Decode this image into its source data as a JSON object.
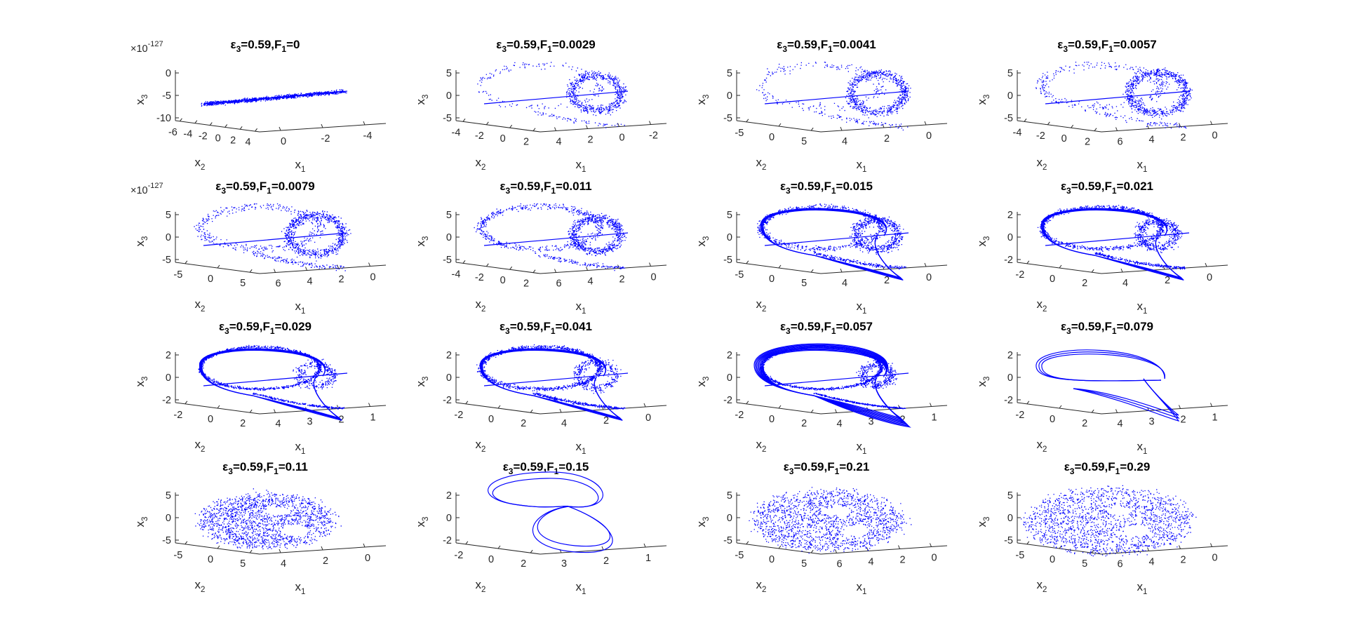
{
  "figure": {
    "color": "#0000ff",
    "panel_count": 16,
    "grid": "4x4",
    "view": "3d-axes, no grid"
  },
  "chart_data": [
    {
      "type": "scatter",
      "title": {
        "eps": "ε",
        "eps_sub": "3",
        "val": "=0.59,F",
        "f_sub": "1",
        "f_val": "=0"
      },
      "exponent": {
        "base": "×10",
        "power": "-127"
      },
      "xlabel": {
        "main": "x",
        "sub": "1"
      },
      "ylabel": {
        "main": "x",
        "sub": "2"
      },
      "zlabel": {
        "main": "x",
        "sub": "3"
      },
      "x1_ticks": [
        "0",
        "-2",
        "-4"
      ],
      "x2_ticks": [
        "-6",
        "-4",
        "-2",
        "0",
        "2",
        "4"
      ],
      "x3_ticks": [
        "0",
        "-5",
        "-10"
      ],
      "pattern": "line",
      "density": 0.5,
      "loop": 0.0,
      "spread": 0.1
    },
    {
      "type": "scatter",
      "title": {
        "eps": "ε",
        "eps_sub": "3",
        "val": "=0.59,F",
        "f_sub": "1",
        "f_val": "=0.0029"
      },
      "xlabel": {
        "main": "x",
        "sub": "1"
      },
      "ylabel": {
        "main": "x",
        "sub": "2"
      },
      "zlabel": {
        "main": "x",
        "sub": "3"
      },
      "x1_ticks": [
        "4",
        "2",
        "0",
        "-2"
      ],
      "x2_ticks": [
        "-4",
        "-2",
        "0",
        "2"
      ],
      "x3_ticks": [
        "5",
        "0",
        "-5"
      ],
      "pattern": "sparse",
      "density": 0.35,
      "loop": 0.3,
      "spread": 0.6
    },
    {
      "type": "scatter",
      "title": {
        "eps": "ε",
        "eps_sub": "3",
        "val": "=0.59,F",
        "f_sub": "1",
        "f_val": "=0.0041"
      },
      "xlabel": {
        "main": "x",
        "sub": "1"
      },
      "ylabel": {
        "main": "x",
        "sub": "2"
      },
      "zlabel": {
        "main": "x",
        "sub": "3"
      },
      "x1_ticks": [
        "4",
        "2",
        "0"
      ],
      "x2_ticks": [
        "-5",
        "0",
        "5"
      ],
      "x3_ticks": [
        "5",
        "0",
        "-5"
      ],
      "pattern": "sparse",
      "density": 0.45,
      "loop": 0.35,
      "spread": 0.7
    },
    {
      "type": "scatter",
      "title": {
        "eps": "ε",
        "eps_sub": "3",
        "val": "=0.59,F",
        "f_sub": "1",
        "f_val": "=0.0057"
      },
      "xlabel": {
        "main": "x",
        "sub": "1"
      },
      "ylabel": {
        "main": "x",
        "sub": "2"
      },
      "zlabel": {
        "main": "x",
        "sub": "3"
      },
      "x1_ticks": [
        "6",
        "4",
        "2",
        "0"
      ],
      "x2_ticks": [
        "-4",
        "-2",
        "0",
        "2"
      ],
      "x3_ticks": [
        "5",
        "0",
        "-5"
      ],
      "pattern": "sparse",
      "density": 0.55,
      "loop": 0.4,
      "spread": 0.75
    },
    {
      "type": "scatter",
      "title": {
        "eps": "ε",
        "eps_sub": "3",
        "val": "=0.59,F",
        "f_sub": "1",
        "f_val": "=0.0079"
      },
      "exponent": {
        "base": "×10",
        "power": "-127"
      },
      "xlabel": {
        "main": "x",
        "sub": "1"
      },
      "ylabel": {
        "main": "x",
        "sub": "2"
      },
      "zlabel": {
        "main": "x",
        "sub": "3"
      },
      "x1_ticks": [
        "6",
        "4",
        "2",
        "0"
      ],
      "x2_ticks": [
        "-5",
        "0",
        "5"
      ],
      "x3_ticks": [
        "5",
        "0",
        "-5"
      ],
      "pattern": "sparse",
      "density": 0.65,
      "loop": 0.5,
      "spread": 0.7
    },
    {
      "type": "scatter",
      "title": {
        "eps": "ε",
        "eps_sub": "3",
        "val": "=0.59,F",
        "f_sub": "1",
        "f_val": "=0.011"
      },
      "xlabel": {
        "main": "x",
        "sub": "1"
      },
      "ylabel": {
        "main": "x",
        "sub": "2"
      },
      "zlabel": {
        "main": "x",
        "sub": "3"
      },
      "x1_ticks": [
        "6",
        "4",
        "2",
        "0"
      ],
      "x2_ticks": [
        "-4",
        "-2",
        "0",
        "2"
      ],
      "x3_ticks": [
        "5",
        "0",
        "-5"
      ],
      "pattern": "sparse",
      "density": 0.7,
      "loop": 0.6,
      "spread": 0.55
    },
    {
      "type": "scatter",
      "title": {
        "eps": "ε",
        "eps_sub": "3",
        "val": "=0.59,F",
        "f_sub": "1",
        "f_val": "=0.015"
      },
      "xlabel": {
        "main": "x",
        "sub": "1"
      },
      "ylabel": {
        "main": "x",
        "sub": "2"
      },
      "zlabel": {
        "main": "x",
        "sub": "3"
      },
      "x1_ticks": [
        "4",
        "2",
        "0"
      ],
      "x2_ticks": [
        "-5",
        "0",
        "5"
      ],
      "x3_ticks": [
        "5",
        "0",
        "-5"
      ],
      "pattern": "loop",
      "density": 0.75,
      "loop": 0.75,
      "spread": 0.45
    },
    {
      "type": "scatter",
      "title": {
        "eps": "ε",
        "eps_sub": "3",
        "val": "=0.59,F",
        "f_sub": "1",
        "f_val": "=0.021"
      },
      "xlabel": {
        "main": "x",
        "sub": "1"
      },
      "ylabel": {
        "main": "x",
        "sub": "2"
      },
      "zlabel": {
        "main": "x",
        "sub": "3"
      },
      "x1_ticks": [
        "4",
        "2",
        "0"
      ],
      "x2_ticks": [
        "-2",
        "0",
        "2"
      ],
      "x3_ticks": [
        "2",
        "0",
        "-2"
      ],
      "pattern": "loop",
      "density": 0.8,
      "loop": 0.85,
      "spread": 0.35
    },
    {
      "type": "scatter",
      "title": {
        "eps": "ε",
        "eps_sub": "3",
        "val": "=0.59,F",
        "f_sub": "1",
        "f_val": "=0.029"
      },
      "xlabel": {
        "main": "x",
        "sub": "1"
      },
      "ylabel": {
        "main": "x",
        "sub": "2"
      },
      "zlabel": {
        "main": "x",
        "sub": "3"
      },
      "x1_ticks": [
        "4",
        "3",
        "2",
        "1"
      ],
      "x2_ticks": [
        "-2",
        "0",
        "2"
      ],
      "x3_ticks": [
        "2",
        "0",
        "-2"
      ],
      "pattern": "attractor",
      "density": 0.75,
      "loop": 1.0,
      "spread": 0.25
    },
    {
      "type": "scatter",
      "title": {
        "eps": "ε",
        "eps_sub": "3",
        "val": "=0.59,F",
        "f_sub": "1",
        "f_val": "=0.041"
      },
      "xlabel": {
        "main": "x",
        "sub": "1"
      },
      "ylabel": {
        "main": "x",
        "sub": "2"
      },
      "zlabel": {
        "main": "x",
        "sub": "3"
      },
      "x1_ticks": [
        "4",
        "2",
        "0"
      ],
      "x2_ticks": [
        "-2",
        "0",
        "2"
      ],
      "x3_ticks": [
        "2",
        "0",
        "-2"
      ],
      "pattern": "attractor",
      "density": 0.9,
      "loop": 1.0,
      "spread": 0.35
    },
    {
      "type": "scatter",
      "title": {
        "eps": "ε",
        "eps_sub": "3",
        "val": "=0.59,F",
        "f_sub": "1",
        "f_val": "=0.057"
      },
      "xlabel": {
        "main": "x",
        "sub": "1"
      },
      "ylabel": {
        "main": "x",
        "sub": "2"
      },
      "zlabel": {
        "main": "x",
        "sub": "3"
      },
      "x1_ticks": [
        "4",
        "3",
        "2",
        "1"
      ],
      "x2_ticks": [
        "-2",
        "0",
        "2"
      ],
      "x3_ticks": [
        "2",
        "0",
        "-2"
      ],
      "pattern": "band",
      "density": 1.0,
      "loop": 1.0,
      "spread": 0.2
    },
    {
      "type": "line",
      "title": {
        "eps": "ε",
        "eps_sub": "3",
        "val": "=0.59,F",
        "f_sub": "1",
        "f_val": "=0.079"
      },
      "xlabel": {
        "main": "x",
        "sub": "1"
      },
      "ylabel": {
        "main": "x",
        "sub": "2"
      },
      "zlabel": {
        "main": "x",
        "sub": "3"
      },
      "x1_ticks": [
        "4",
        "3",
        "2",
        "1"
      ],
      "x2_ticks": [
        "-2",
        "0",
        "2"
      ],
      "x3_ticks": [
        "2",
        "0",
        "-2"
      ],
      "pattern": "periodic",
      "density": 0.0,
      "loop": 1.0,
      "spread": 0.0
    },
    {
      "type": "scatter",
      "title": {
        "eps": "ε",
        "eps_sub": "3",
        "val": "=0.59,F",
        "f_sub": "1",
        "f_val": "=0.11"
      },
      "xlabel": {
        "main": "x",
        "sub": "1"
      },
      "ylabel": {
        "main": "x",
        "sub": "2"
      },
      "zlabel": {
        "main": "x",
        "sub": "3"
      },
      "x1_ticks": [
        "4",
        "2",
        "0"
      ],
      "x2_ticks": [
        "-5",
        "0",
        "5"
      ],
      "x3_ticks": [
        "5",
        "0",
        "-5"
      ],
      "pattern": "cloud",
      "density": 1.0,
      "loop": 0.55,
      "spread": 0.8
    },
    {
      "type": "line",
      "title": {
        "eps": "ε",
        "eps_sub": "3",
        "val": "=0.59,F",
        "f_sub": "1",
        "f_val": "=0.15"
      },
      "xlabel": {
        "main": "x",
        "sub": "1"
      },
      "ylabel": {
        "main": "x",
        "sub": "2"
      },
      "zlabel": {
        "main": "x",
        "sub": "3"
      },
      "x1_ticks": [
        "3",
        "2",
        "1"
      ],
      "x2_ticks": [
        "-2",
        "0",
        "2"
      ],
      "x3_ticks": [
        "2",
        "0",
        "-2"
      ],
      "pattern": "periodic2",
      "density": 0.0,
      "loop": 1.0,
      "spread": 0.0
    },
    {
      "type": "scatter",
      "title": {
        "eps": "ε",
        "eps_sub": "3",
        "val": "=0.59,F",
        "f_sub": "1",
        "f_val": "=0.21"
      },
      "xlabel": {
        "main": "x",
        "sub": "1"
      },
      "ylabel": {
        "main": "x",
        "sub": "2"
      },
      "zlabel": {
        "main": "x",
        "sub": "3"
      },
      "x1_ticks": [
        "6",
        "4",
        "2",
        "0"
      ],
      "x2_ticks": [
        "-5",
        "0",
        "5"
      ],
      "x3_ticks": [
        "5",
        "0",
        "-5"
      ],
      "pattern": "cloud",
      "density": 1.0,
      "loop": 0.5,
      "spread": 0.9
    },
    {
      "type": "scatter",
      "title": {
        "eps": "ε",
        "eps_sub": "3",
        "val": "=0.59,F",
        "f_sub": "1",
        "f_val": "=0.29"
      },
      "xlabel": {
        "main": "x",
        "sub": "1"
      },
      "ylabel": {
        "main": "x",
        "sub": "2"
      },
      "zlabel": {
        "main": "x",
        "sub": "3"
      },
      "x1_ticks": [
        "6",
        "4",
        "2",
        "0"
      ],
      "x2_ticks": [
        "-5",
        "0",
        "5"
      ],
      "x3_ticks": [
        "5",
        "0",
        "-5"
      ],
      "pattern": "cloud",
      "density": 1.0,
      "loop": 0.45,
      "spread": 1.0
    }
  ]
}
